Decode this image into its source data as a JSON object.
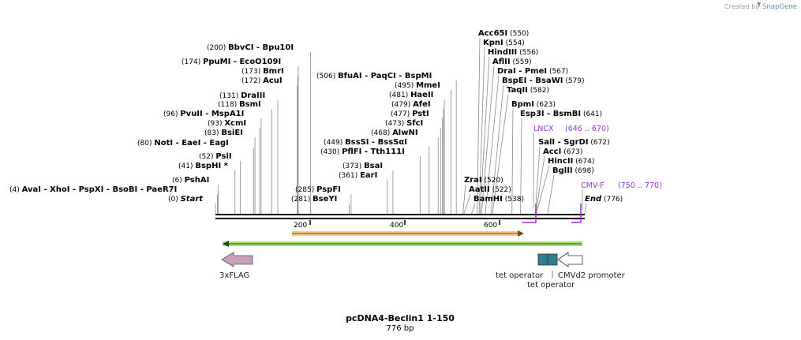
{
  "credit": {
    "prefix": "Created by",
    "brand": "SnapGene"
  },
  "title": "pcDNA4-Beclin1 1-150",
  "length_label": "776 bp",
  "rows": [
    {
      "y": 60,
      "items": [
        {
          "pos": "(200)",
          "names": [
            "BbvCI",
            "Bpu10I"
          ],
          "x": 262
        }
      ]
    },
    {
      "y": 78,
      "items": [
        {
          "pos": "(174)",
          "names": [
            "PpuMI",
            "EcoO109I"
          ],
          "x": 230
        }
      ]
    },
    {
      "y": 90,
      "items": [
        {
          "pos": "(173)",
          "names": [
            "BmrI"
          ],
          "x": 306
        }
      ]
    },
    {
      "y": 102,
      "items": [
        {
          "pos": "(172)",
          "names": [
            "AcuI"
          ],
          "x": 306
        }
      ]
    },
    {
      "y": 121,
      "items": [
        {
          "pos": "(131)",
          "names": [
            "DraIII"
          ],
          "x": 278
        }
      ]
    },
    {
      "y": 132,
      "items": [
        {
          "pos": "(118)",
          "names": [
            "BsmI"
          ],
          "x": 276
        }
      ]
    },
    {
      "y": 144,
      "items": [
        {
          "pos": "(96)",
          "names": [
            "PvuII",
            "MspA1I"
          ],
          "x": 207
        }
      ]
    },
    {
      "y": 156,
      "items": [
        {
          "pos": "(93)",
          "names": [
            "XcmI"
          ],
          "x": 263
        }
      ]
    },
    {
      "y": 168,
      "items": [
        {
          "pos": "(83)",
          "names": [
            "BsiEI"
          ],
          "x": 259
        }
      ]
    },
    {
      "y": 181,
      "items": [
        {
          "pos": "(80)",
          "names": [
            "NotI",
            "EaeI",
            "EagI"
          ],
          "x": 174
        }
      ]
    },
    {
      "y": 198,
      "items": [
        {
          "pos": "(52)",
          "names": [
            "PsiI"
          ],
          "x": 252
        }
      ]
    },
    {
      "y": 210,
      "items": [
        {
          "pos": "(41)",
          "names": [
            "BspHI *"
          ],
          "x": 226
        }
      ]
    },
    {
      "y": 228,
      "items": [
        {
          "pos": "(6)",
          "names": [
            "PshAI"
          ],
          "x": 218
        }
      ]
    },
    {
      "y": 240,
      "items": [
        {
          "pos": "(4)",
          "names": [
            "AvaI",
            "XhoI",
            "PspXI",
            "BsoBI",
            "PaeR7I"
          ],
          "x": 12
        }
      ]
    },
    {
      "y": 252,
      "items": [
        {
          "pos": "(0)",
          "names": [
            "Start"
          ],
          "x": 213,
          "italic": true
        }
      ]
    },
    {
      "y": 240,
      "items": [
        {
          "pos": "(285)",
          "names": [
            "PspFI"
          ],
          "x": 374
        }
      ]
    },
    {
      "y": 252,
      "items": [
        {
          "pos": "(281)",
          "names": [
            "BseYI"
          ],
          "x": 369
        }
      ]
    },
    {
      "y": 210,
      "items": [
        {
          "pos": "(373)",
          "names": [
            "BsaI"
          ],
          "x": 434
        }
      ]
    },
    {
      "y": 222,
      "items": [
        {
          "pos": "(361)",
          "names": [
            "EarI"
          ],
          "x": 429
        }
      ]
    },
    {
      "y": 96,
      "items": [
        {
          "pos": "(506)",
          "names": [
            "BfuAI",
            "PaqCI",
            "BspMI"
          ],
          "x": 401
        }
      ]
    },
    {
      "y": 108,
      "items": [
        {
          "pos": "(495)",
          "names": [
            "MmeI"
          ],
          "x": 500
        }
      ]
    },
    {
      "y": 120,
      "items": [
        {
          "pos": "(481)",
          "names": [
            "HaeII"
          ],
          "x": 493
        }
      ]
    },
    {
      "y": 132,
      "items": [
        {
          "pos": "(479)",
          "names": [
            "AfeI"
          ],
          "x": 496
        }
      ]
    },
    {
      "y": 144,
      "items": [
        {
          "pos": "(477)",
          "names": [
            "PstI"
          ],
          "x": 495
        }
      ]
    },
    {
      "y": 156,
      "items": [
        {
          "pos": "(473)",
          "names": [
            "SfcI"
          ],
          "x": 488
        }
      ]
    },
    {
      "y": 168,
      "items": [
        {
          "pos": "(468)",
          "names": [
            "AlwNI"
          ],
          "x": 470
        }
      ]
    },
    {
      "y": 180,
      "items": [
        {
          "pos": "(449)",
          "names": [
            "BssSI",
            "BssSαI"
          ],
          "x": 410
        }
      ]
    },
    {
      "y": 192,
      "items": [
        {
          "pos": "(430)",
          "names": [
            "PflFI",
            "Tth111I"
          ],
          "x": 406
        }
      ]
    },
    {
      "y": 42,
      "items": [
        {
          "pos": "(550)",
          "names": [
            "Acc65I"
          ],
          "x": 606,
          "posRight": true
        }
      ]
    },
    {
      "y": 54,
      "items": [
        {
          "pos": "(554)",
          "names": [
            "KpnI"
          ],
          "x": 612,
          "posRight": true
        }
      ]
    },
    {
      "y": 66,
      "items": [
        {
          "pos": "(556)",
          "names": [
            "HindIII"
          ],
          "x": 618,
          "posRight": true
        }
      ]
    },
    {
      "y": 78,
      "items": [
        {
          "pos": "(559)",
          "names": [
            "AflII"
          ],
          "x": 624,
          "posRight": true
        }
      ]
    },
    {
      "y": 90,
      "items": [
        {
          "pos": "(567)",
          "names": [
            "DraI",
            "PmeI"
          ],
          "x": 630,
          "posRight": true
        }
      ]
    },
    {
      "y": 102,
      "items": [
        {
          "pos": "(579)",
          "names": [
            "BspEI",
            "BsaWI"
          ],
          "x": 636,
          "posRight": true
        }
      ]
    },
    {
      "y": 114,
      "items": [
        {
          "pos": "(582)",
          "names": [
            "TaqII"
          ],
          "x": 642,
          "posRight": true
        }
      ]
    },
    {
      "y": 132,
      "items": [
        {
          "pos": "(623)",
          "names": [
            "BpmI"
          ],
          "x": 648,
          "posRight": true
        }
      ]
    },
    {
      "y": 144,
      "items": [
        {
          "pos": "(641)",
          "names": [
            "Esp3I",
            "BsmBI"
          ],
          "x": 659,
          "posRight": true
        }
      ]
    },
    {
      "y": 180,
      "items": [
        {
          "pos": "(672)",
          "names": [
            "SalI",
            "SgrDI"
          ],
          "x": 682,
          "posRight": true
        }
      ]
    },
    {
      "y": 192,
      "items": [
        {
          "pos": "(673)",
          "names": [
            "AccI"
          ],
          "x": 688,
          "posRight": true
        }
      ]
    },
    {
      "y": 204,
      "items": [
        {
          "pos": "(674)",
          "names": [
            "HincII"
          ],
          "x": 694,
          "posRight": true
        }
      ]
    },
    {
      "y": 216,
      "items": [
        {
          "pos": "(698)",
          "names": [
            "BglII"
          ],
          "x": 700,
          "posRight": true
        }
      ]
    },
    {
      "y": 228,
      "items": [
        {
          "pos": "(520)",
          "names": [
            "ZraI"
          ],
          "x": 588,
          "posRight": true
        }
      ]
    },
    {
      "y": 240,
      "items": [
        {
          "pos": "(522)",
          "names": [
            "AatII"
          ],
          "x": 594,
          "posRight": true
        }
      ]
    },
    {
      "y": 252,
      "items": [
        {
          "pos": "(538)",
          "names": [
            "BamHI"
          ],
          "x": 600,
          "posRight": true
        }
      ]
    },
    {
      "y": 252,
      "items": [
        {
          "pos": "(776)",
          "names": [
            "End"
          ],
          "x": 741,
          "posRight": true,
          "italic": true
        }
      ]
    }
  ],
  "primers": [
    {
      "name": "LNCX",
      "range": "(646 .. 670)"
    },
    {
      "name": "CMV-F",
      "range": "(750 .. 770)"
    }
  ],
  "ruler_ticks": [
    "200",
    "400",
    "600"
  ],
  "features": [
    {
      "name": "3xFLAG"
    },
    {
      "name": "tet operator"
    },
    {
      "name": "tet operator"
    },
    {
      "name": "CMVd2 promoter"
    }
  ],
  "colors": {
    "primer": "#9b30d9",
    "orf_fill": "#f7c98a",
    "orf_stroke": "#c08a2a",
    "green": "#a6e37a",
    "flag": "#c9a0b8",
    "tet": "#2f7f8f"
  }
}
